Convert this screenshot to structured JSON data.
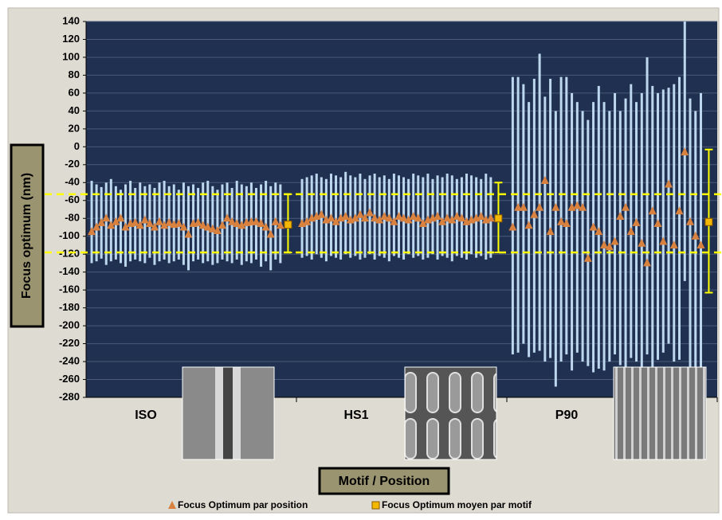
{
  "chart_data": {
    "type": "range-scatter",
    "ylabel": "Focus optimum (nm)",
    "xlabel": "Motif / Position",
    "ylim": [
      -280,
      140
    ],
    "yticks": [
      -280,
      -260,
      -240,
      -220,
      -200,
      -180,
      -160,
      -140,
      -120,
      -100,
      -80,
      -60,
      -40,
      -20,
      0,
      20,
      40,
      60,
      80,
      100,
      120,
      140
    ],
    "grid": true,
    "range_color": "#bdd7ee",
    "reference_lines": [
      -53,
      -118
    ],
    "reference_color": "#ffff00",
    "series": [
      {
        "name": "Focus Optimum par position",
        "color": "#d9823f"
      },
      {
        "name": "Focus Optimum moyen par motif",
        "color": "#f5b800"
      }
    ],
    "groups": [
      {
        "name": "ISO",
        "values": [
          -95,
          -90,
          -85,
          -80,
          -88,
          -84,
          -80,
          -90,
          -86,
          -85,
          -88,
          -82,
          -86,
          -90,
          -84,
          -88,
          -85,
          -87,
          -86,
          -90,
          -98,
          -86,
          -85,
          -88,
          -90,
          -92,
          -94,
          -88,
          -80,
          -84,
          -86,
          -88,
          -85,
          -84,
          -84,
          -86,
          -90,
          -98,
          -84,
          -88
        ],
        "high": [
          -38,
          -42,
          -45,
          -40,
          -36,
          -44,
          -48,
          -42,
          -38,
          -46,
          -40,
          -44,
          -42,
          -46,
          -40,
          -38,
          -44,
          -42,
          -48,
          -40,
          -44,
          -42,
          -46,
          -40,
          -38,
          -44,
          -48,
          -42,
          -40,
          -46,
          -38,
          -42,
          -44,
          -40,
          -46,
          -42,
          -38,
          -44,
          -40,
          -42
        ],
        "low": [
          -130,
          -128,
          -125,
          -132,
          -128,
          -126,
          -130,
          -134,
          -128,
          -126,
          -128,
          -130,
          -124,
          -132,
          -128,
          -126,
          -130,
          -128,
          -126,
          -132,
          -138,
          -128,
          -126,
          -130,
          -128,
          -132,
          -130,
          -126,
          -128,
          -130,
          -126,
          -132,
          -128,
          -130,
          -126,
          -134,
          -128,
          -138,
          -126,
          -130
        ],
        "mean": -87,
        "mean_low": -118,
        "mean_high": -53
      },
      {
        "name": "HS1",
        "values": [
          -86,
          -84,
          -80,
          -78,
          -76,
          -82,
          -80,
          -84,
          -80,
          -78,
          -82,
          -80,
          -76,
          -80,
          -74,
          -80,
          -82,
          -78,
          -80,
          -84,
          -78,
          -80,
          -82,
          -78,
          -80,
          -86,
          -82,
          -80,
          -78,
          -84,
          -80,
          -82,
          -78,
          -80,
          -84,
          -82,
          -80,
          -78,
          -82,
          -80
        ],
        "high": [
          -36,
          -34,
          -32,
          -30,
          -34,
          -36,
          -30,
          -32,
          -34,
          -28,
          -32,
          -34,
          -30,
          -36,
          -32,
          -30,
          -34,
          -32,
          -36,
          -30,
          -32,
          -34,
          -36,
          -30,
          -32,
          -34,
          -30,
          -36,
          -32,
          -34,
          -30,
          -32,
          -36,
          -34,
          -30,
          -32,
          -34,
          -36,
          -30,
          -34
        ],
        "low": [
          -124,
          -122,
          -126,
          -120,
          -124,
          -128,
          -122,
          -124,
          -126,
          -120,
          -124,
          -122,
          -126,
          -124,
          -120,
          -126,
          -122,
          -124,
          -128,
          -122,
          -124,
          -126,
          -120,
          -124,
          -122,
          -126,
          -124,
          -120,
          -126,
          -122,
          -124,
          -128,
          -122,
          -124,
          -126,
          -120,
          -124,
          -122,
          -126,
          -124
        ],
        "mean": -80,
        "mean_low": -118,
        "mean_high": -40
      },
      {
        "name": "P90",
        "values": [
          -90,
          -68,
          -68,
          -88,
          -76,
          -68,
          -38,
          -95,
          -68,
          -84,
          -86,
          -68,
          -66,
          -68,
          -125,
          -90,
          -95,
          -110,
          -112,
          -106,
          -78,
          -68,
          -95,
          -85,
          -108,
          -130,
          -72,
          -86,
          -106,
          -42,
          -110,
          -72,
          -6,
          -84,
          -100,
          -110
        ],
        "high": [
          78,
          78,
          70,
          50,
          76,
          104,
          56,
          76,
          40,
          78,
          78,
          60,
          50,
          40,
          30,
          50,
          68,
          50,
          40,
          60,
          40,
          54,
          70,
          50,
          60,
          100,
          68,
          60,
          64,
          66,
          70,
          78,
          140,
          54,
          40,
          60
        ],
        "low": [
          -232,
          -230,
          -220,
          -235,
          -230,
          -228,
          -240,
          -236,
          -268,
          -240,
          -232,
          -250,
          -230,
          -240,
          -245,
          -252,
          -248,
          -250,
          -240,
          -232,
          -244,
          -250,
          -236,
          -240,
          -250,
          -232,
          -252,
          -238,
          -230,
          -220,
          -240,
          -238,
          -150,
          -250,
          -260,
          -264
        ],
        "mean": -84,
        "mean_low": -163,
        "mean_high": -3
      }
    ]
  }
}
